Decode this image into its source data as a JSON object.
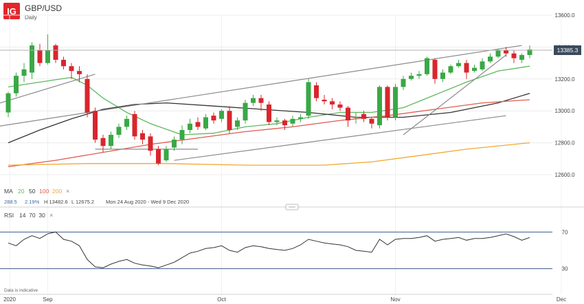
{
  "brand": {
    "logo_text": "IG",
    "logo_color": "#e2262b"
  },
  "header": {
    "instrument": "GBP/USD",
    "timeframe": "Daily"
  },
  "price_tag": {
    "value": "13385.3",
    "color": "#3a4a5c"
  },
  "ma_legend": {
    "prefix": "MA",
    "items": [
      {
        "label": "20",
        "color": "#5cb85c"
      },
      {
        "label": "50",
        "color": "#333333"
      },
      {
        "label": "100",
        "color": "#e05a4f"
      },
      {
        "label": "200",
        "color": "#f0a830"
      }
    ],
    "close": "×"
  },
  "stats": {
    "change": "288.5",
    "pct": "2.19%",
    "high": "H 13482.6",
    "low": "L 12675.2",
    "range": "Mon 24 Aug 2020 - Wed 9 Dec 2020"
  },
  "rsi_legend": {
    "label": "RSI",
    "params": "14  70  30",
    "close": "×"
  },
  "footer_note": "Data is indicative",
  "colors": {
    "up": "#3aa845",
    "down": "#d9262d",
    "channel": "#8a8a8a",
    "rsi": "#333333",
    "rsi_band": "#3a5a8c"
  },
  "chart_data": {
    "type": "candlestick",
    "y_ticks": [
      "13600.0",
      "13400.0",
      "13200.0",
      "13000.0",
      "12800.0",
      "12600.0"
    ],
    "ylim": [
      12600,
      13600
    ],
    "x_ticks": [
      {
        "label": "2020",
        "i": -1
      },
      {
        "label": "Sep",
        "i": 5
      },
      {
        "label": "Oct",
        "i": 27
      },
      {
        "label": "Nov",
        "i": 49
      },
      {
        "label": "Dec",
        "i": 70
      }
    ],
    "candles": [
      [
        12990,
        13110,
        13120,
        12960
      ],
      [
        13110,
        13220,
        13240,
        13090
      ],
      [
        13220,
        13260,
        13300,
        13180
      ],
      [
        13240,
        13410,
        13430,
        13200
      ],
      [
        13380,
        13300,
        13420,
        13280
      ],
      [
        13300,
        13380,
        13480,
        13290
      ],
      [
        13410,
        13320,
        13420,
        13300
      ],
      [
        13320,
        13280,
        13340,
        13260
      ],
      [
        13280,
        13250,
        13300,
        13200
      ],
      [
        13250,
        13230,
        13280,
        13180
      ],
      [
        13200,
        12990,
        13230,
        12960
      ],
      [
        13000,
        12820,
        13020,
        12800
      ],
      [
        12830,
        12780,
        12850,
        12740
      ],
      [
        12780,
        12850,
        12870,
        12760
      ],
      [
        12850,
        12900,
        12920,
        12830
      ],
      [
        12900,
        12950,
        12970,
        12880
      ],
      [
        12980,
        12840,
        13000,
        12820
      ],
      [
        12860,
        12820,
        12880,
        12790
      ],
      [
        12840,
        12750,
        12860,
        12720
      ],
      [
        12760,
        12670,
        12780,
        12660
      ],
      [
        12690,
        12760,
        12780,
        12680
      ],
      [
        12770,
        12820,
        12840,
        12750
      ],
      [
        12820,
        12880,
        12910,
        12790
      ],
      [
        12880,
        12920,
        12950,
        12860
      ],
      [
        12930,
        12900,
        12960,
        12880
      ],
      [
        12890,
        12960,
        12980,
        12880
      ],
      [
        12970,
        12940,
        12990,
        12920
      ],
      [
        12950,
        13000,
        13010,
        12930
      ],
      [
        13000,
        12880,
        13030,
        12860
      ],
      [
        12900,
        12940,
        12960,
        12880
      ],
      [
        12940,
        13050,
        13070,
        12920
      ],
      [
        13050,
        13080,
        13100,
        13030
      ],
      [
        13080,
        13050,
        13100,
        13000
      ],
      [
        13040,
        12930,
        13060,
        12910
      ],
      [
        12930,
        12940,
        12960,
        12910
      ],
      [
        12940,
        12910,
        12950,
        12880
      ],
      [
        12920,
        12950,
        12970,
        12900
      ],
      [
        12950,
        12960,
        12980,
        12930
      ],
      [
        12970,
        13180,
        13200,
        12950
      ],
      [
        13160,
        13080,
        13180,
        13060
      ],
      [
        13070,
        13060,
        13100,
        13040
      ],
      [
        13060,
        13040,
        13080,
        13010
      ],
      [
        13040,
        13020,
        13060,
        13000
      ],
      [
        13020,
        12940,
        13030,
        12900
      ],
      [
        12960,
        12960,
        12990,
        12920
      ],
      [
        12980,
        12950,
        13000,
        12930
      ],
      [
        12950,
        12920,
        12960,
        12890
      ],
      [
        12910,
        13150,
        13160,
        12890
      ],
      [
        13150,
        12960,
        13160,
        12940
      ],
      [
        12960,
        13150,
        13170,
        12940
      ],
      [
        13150,
        13200,
        13220,
        13130
      ],
      [
        13200,
        13220,
        13240,
        13190
      ],
      [
        13220,
        13230,
        13250,
        13200
      ],
      [
        13230,
        13330,
        13340,
        13220
      ],
      [
        13320,
        13200,
        13330,
        13170
      ],
      [
        13200,
        13240,
        13260,
        13180
      ],
      [
        13240,
        13280,
        13290,
        13230
      ],
      [
        13280,
        13300,
        13320,
        13270
      ],
      [
        13300,
        13240,
        13320,
        13200
      ],
      [
        13250,
        13270,
        13290,
        13240
      ],
      [
        13260,
        13310,
        13330,
        13250
      ],
      [
        13310,
        13340,
        13360,
        13300
      ],
      [
        13340,
        13380,
        13390,
        13330
      ],
      [
        13380,
        13360,
        13400,
        13340
      ],
      [
        13360,
        13330,
        13380,
        13300
      ],
      [
        13320,
        13350,
        13360,
        13300
      ],
      [
        13350,
        13385,
        13410,
        13330
      ]
    ],
    "ma_lines": [
      {
        "name": "20",
        "color": "#5cb85c",
        "v": [
          [
            0,
            13150
          ],
          [
            4,
            13180
          ],
          [
            8,
            13210
          ],
          [
            10,
            13160
          ],
          [
            12,
            13080
          ],
          [
            15,
            12990
          ],
          [
            18,
            12920
          ],
          [
            22,
            12850
          ],
          [
            26,
            12860
          ],
          [
            30,
            12900
          ],
          [
            34,
            12920
          ],
          [
            38,
            12960
          ],
          [
            42,
            12990
          ],
          [
            46,
            12990
          ],
          [
            50,
            13020
          ],
          [
            54,
            13100
          ],
          [
            58,
            13180
          ],
          [
            62,
            13250
          ],
          [
            66,
            13280
          ]
        ]
      },
      {
        "name": "50",
        "color": "#333333",
        "v": [
          [
            0,
            12800
          ],
          [
            4,
            12880
          ],
          [
            8,
            12950
          ],
          [
            12,
            13010
          ],
          [
            16,
            13040
          ],
          [
            20,
            13050
          ],
          [
            26,
            13030
          ],
          [
            32,
            13010
          ],
          [
            38,
            12990
          ],
          [
            44,
            12960
          ],
          [
            50,
            12960
          ],
          [
            56,
            12990
          ],
          [
            62,
            13050
          ],
          [
            66,
            13110
          ]
        ]
      },
      {
        "name": "100",
        "color": "#e05a4f",
        "v": [
          [
            0,
            12650
          ],
          [
            6,
            12690
          ],
          [
            12,
            12740
          ],
          [
            18,
            12790
          ],
          [
            24,
            12830
          ],
          [
            30,
            12870
          ],
          [
            36,
            12900
          ],
          [
            42,
            12940
          ],
          [
            48,
            12970
          ],
          [
            54,
            13010
          ],
          [
            60,
            13050
          ],
          [
            66,
            13070
          ]
        ]
      },
      {
        "name": "200",
        "color": "#f0a830",
        "v": [
          [
            0,
            12660
          ],
          [
            10,
            12670
          ],
          [
            20,
            12670
          ],
          [
            30,
            12660
          ],
          [
            40,
            12660
          ],
          [
            46,
            12680
          ],
          [
            52,
            12720
          ],
          [
            58,
            12760
          ],
          [
            66,
            12800
          ]
        ]
      }
    ],
    "trend_lines": [
      [
        [
          -3,
          13020
        ],
        [
          11,
          13230
        ]
      ],
      [
        [
          11,
          12760
        ],
        [
          24,
          12760
        ]
      ],
      [
        [
          21,
          12690
        ],
        [
          63,
          12970
        ]
      ],
      [
        [
          -3,
          12890
        ],
        [
          65,
          13410
        ]
      ],
      [
        [
          50,
          12850
        ],
        [
          63,
          13350
        ]
      ]
    ],
    "rsi": {
      "band_upper": 70,
      "band_lower": 30,
      "ticks": [
        "70",
        "30"
      ],
      "values": [
        58,
        55,
        62,
        66,
        63,
        68,
        70,
        62,
        60,
        55,
        40,
        32,
        31,
        35,
        38,
        40,
        36,
        34,
        33,
        31,
        34,
        37,
        42,
        47,
        49,
        52,
        53,
        55,
        50,
        48,
        53,
        55,
        54,
        52,
        51,
        50,
        52,
        56,
        62,
        60,
        58,
        57,
        56,
        54,
        50,
        49,
        48,
        62,
        56,
        62,
        63,
        63,
        64,
        66,
        60,
        62,
        63,
        64,
        61,
        63,
        63,
        64,
        66,
        68,
        65,
        61,
        64
      ]
    }
  }
}
